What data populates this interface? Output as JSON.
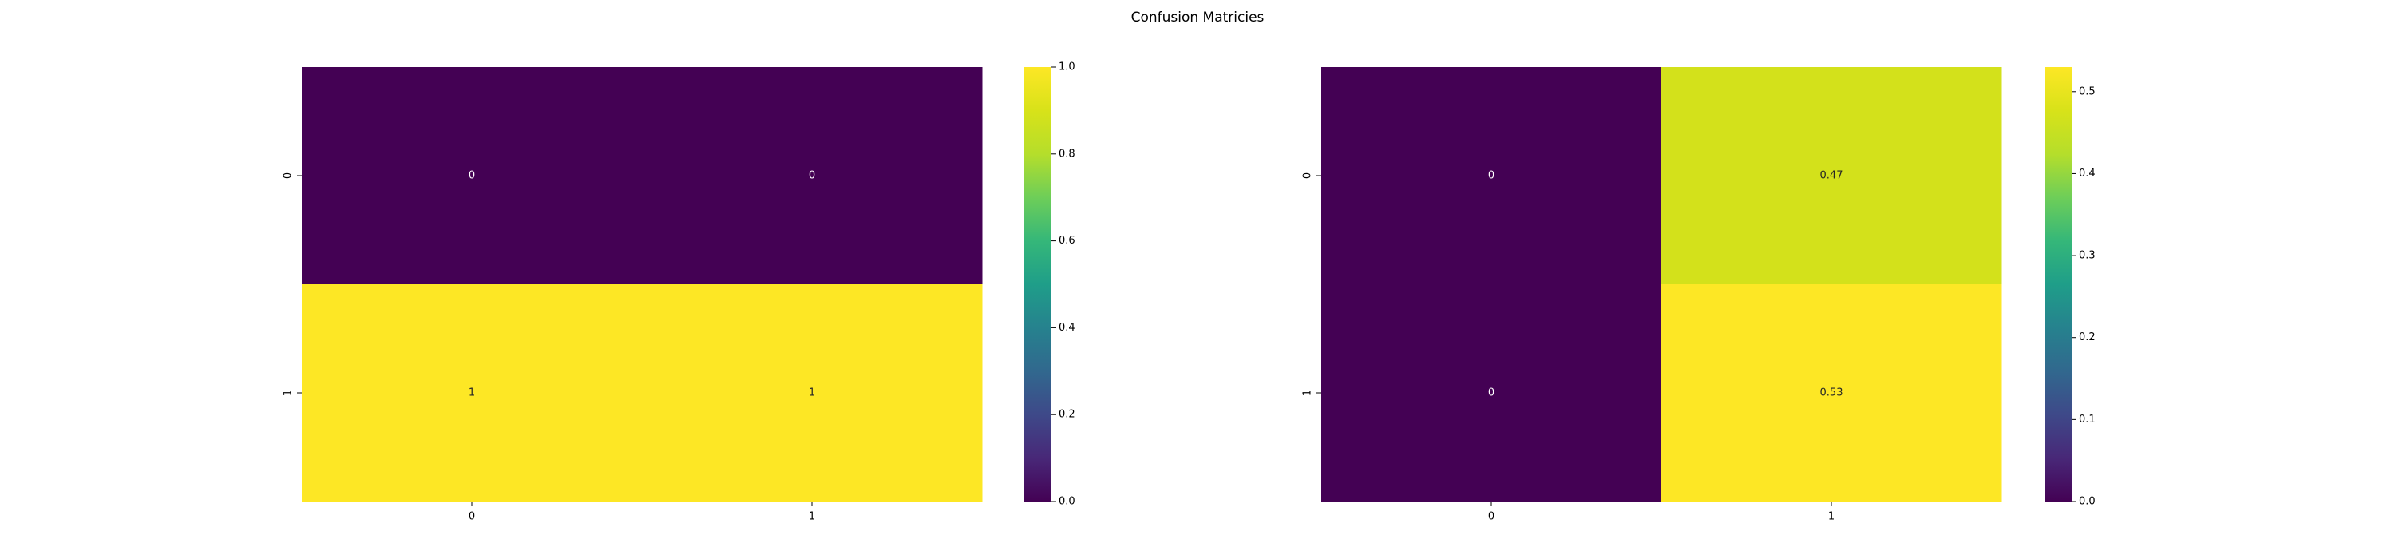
{
  "figure": {
    "title": "Confusion Matricies"
  },
  "chart_data": [
    {
      "type": "heatmap",
      "title": "",
      "xlabel": "",
      "ylabel": "",
      "x_categories": [
        "0",
        "1"
      ],
      "y_categories": [
        "0",
        "1"
      ],
      "values": [
        [
          0,
          0
        ],
        [
          1,
          1
        ]
      ],
      "annotations": [
        [
          "0",
          "0"
        ],
        [
          "1",
          "1"
        ]
      ],
      "colormap": "viridis",
      "vmin": 0,
      "vmax": 1,
      "colorbar_ticks": [
        "0.0",
        "0.2",
        "0.4",
        "0.6",
        "0.8",
        "1.0"
      ],
      "grid": false,
      "colors": {
        "min": "#440154",
        "max": "#fde725"
      }
    },
    {
      "type": "heatmap",
      "title": "",
      "xlabel": "",
      "ylabel": "",
      "x_categories": [
        "0",
        "1"
      ],
      "y_categories": [
        "0",
        "1"
      ],
      "values": [
        [
          0,
          0.47
        ],
        [
          0,
          0.53
        ]
      ],
      "annotations": [
        [
          "0",
          "0.47"
        ],
        [
          "0",
          "0.53"
        ]
      ],
      "colormap": "viridis",
      "vmin": 0,
      "vmax": 0.53,
      "colorbar_ticks": [
        "0.0",
        "0.1",
        "0.2",
        "0.3",
        "0.4",
        "0.5"
      ],
      "grid": false,
      "colors": {
        "min": "#440154",
        "max": "#fde725"
      }
    }
  ]
}
